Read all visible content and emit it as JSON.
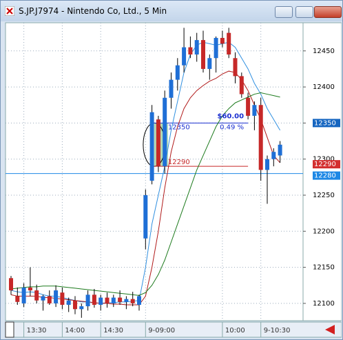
{
  "window": {
    "title": "S.JP.J7974 - Nintendo Co, Ltd., 5 Min"
  },
  "chart_data": {
    "type": "candlestick",
    "categories": [
      null,
      null,
      "13:30",
      null,
      null,
      null,
      null,
      null,
      "14:00",
      null,
      null,
      null,
      null,
      null,
      "14:30",
      null,
      null,
      null,
      null,
      null,
      null,
      "9-09:00",
      null,
      null,
      null,
      null,
      null,
      null,
      null,
      null,
      null,
      null,
      null,
      "10:00",
      null,
      null,
      null,
      null,
      null,
      "9-10:30",
      null,
      null,
      null
    ],
    "open": [
      12135,
      12110,
      12100,
      12122,
      12118,
      12104,
      12110,
      12100,
      12115,
      12098,
      12104,
      12092,
      12096,
      12112,
      12098,
      12108,
      12100,
      12108,
      12102,
      12106,
      12098,
      12190,
      12270,
      12355,
      12290,
      12385,
      12410,
      12430,
      12455,
      12445,
      12465,
      12425,
      12440,
      12468,
      12475,
      12440,
      12415,
      12385,
      12360,
      12375,
      12285,
      12300,
      12305
    ],
    "high": [
      12138,
      12122,
      12128,
      12150,
      12126,
      12112,
      12118,
      12125,
      12122,
      12108,
      12110,
      12100,
      12118,
      12120,
      12112,
      12115,
      12112,
      12118,
      12110,
      12116,
      12112,
      12258,
      12375,
      12360,
      12395,
      12420,
      12440,
      12482,
      12470,
      12475,
      12478,
      12445,
      12470,
      12478,
      12482,
      12448,
      12420,
      12392,
      12380,
      12385,
      12305,
      12315,
      12325
    ],
    "low": [
      12112,
      12098,
      12095,
      12110,
      12100,
      12090,
      12098,
      12095,
      12092,
      12088,
      12085,
      12080,
      12090,
      12094,
      12090,
      12094,
      12095,
      12098,
      12092,
      12096,
      12090,
      12175,
      12265,
      12282,
      12280,
      12370,
      12395,
      12420,
      12440,
      12435,
      12420,
      12410,
      12420,
      12455,
      12440,
      12405,
      12385,
      12355,
      12340,
      12270,
      12238,
      12290,
      12295
    ],
    "close": [
      12118,
      12102,
      12122,
      12118,
      12104,
      12110,
      12100,
      12118,
      12098,
      12104,
      12092,
      12096,
      12112,
      12098,
      12108,
      12100,
      12108,
      12102,
      12106,
      12100,
      12110,
      12250,
      12365,
      12290,
      12385,
      12410,
      12430,
      12455,
      12445,
      12465,
      12425,
      12440,
      12468,
      12460,
      12445,
      12415,
      12390,
      12360,
      12375,
      12285,
      12300,
      12310,
      12320
    ],
    "up_color": "#1f6fd6",
    "down_color": "#c62828",
    "series": [
      {
        "color": "#2f8fe0",
        "values": [
          12118,
          12116,
          12115,
          12116,
          12115,
          12112,
          12110,
          12110,
          12108,
          12106,
          12104,
          12102,
          12102,
          12101,
          12100,
          12101,
          12101,
          12102,
          12102,
          12103,
          12104,
          12150,
          12210,
          12250,
          12290,
          12340,
          12380,
          12420,
          12445,
          12458,
          12462,
          12460,
          12458,
          12460,
          12462,
          12455,
          12440,
          12425,
          12405,
          12390,
          12370,
          12355,
          12340
        ]
      },
      {
        "color": "#b01818",
        "values": [
          12112,
          12110,
          12110,
          12110,
          12110,
          12108,
          12108,
          12107,
          12106,
          12105,
          12104,
          12103,
          12102,
          12101,
          12100,
          12100,
          12099,
          12099,
          12098,
          12098,
          12098,
          12110,
          12150,
          12200,
          12260,
          12310,
          12345,
          12370,
          12385,
          12395,
          12402,
          12408,
          12412,
          12418,
          12422,
          12420,
          12410,
          12395,
          12375,
          12355,
          12330,
          12305,
          12295
        ]
      },
      {
        "color": "#1c7a1c",
        "values": [
          12120,
          12121,
          12122,
          12123,
          12123,
          12124,
          12124,
          12124,
          12123,
          12122,
          12121,
          12120,
          12119,
          12118,
          12117,
          12116,
          12115,
          12114,
          12113,
          12112,
          12111,
          12115,
          12125,
          12140,
          12160,
          12185,
          12210,
          12235,
          12260,
          12285,
          12305,
          12325,
          12345,
          12360,
          12370,
          12378,
          12382,
          12386,
          12390,
          12392,
          12390,
          12388,
          12386
        ]
      }
    ],
    "ylim": [
      12076,
      12489
    ],
    "yticks": [
      12100,
      12150,
      12200,
      12250,
      12300,
      12350,
      12400,
      12450
    ],
    "grid": true,
    "price_line": {
      "value": 12280,
      "color": "#1e88e5"
    },
    "markers": [
      {
        "value": 12350,
        "color": "#1565c0"
      },
      {
        "value": 12290,
        "color": "#d32f2f"
      },
      {
        "value": 12280,
        "color": "#1e88e5"
      }
    ],
    "ruler": {
      "from": 12350,
      "to": 12290,
      "start": 23,
      "end": 37,
      "amount_label": "$60.00",
      "percent_label": "0.49 %"
    }
  }
}
